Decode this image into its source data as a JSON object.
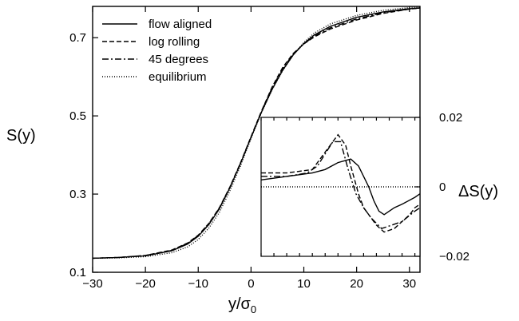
{
  "chart_data": [
    {
      "type": "line",
      "xlabel": "y/σ",
      "xlabel_sub": "0",
      "ylabel": "S(y)",
      "xlim": [
        -30,
        32
      ],
      "ylim": [
        0.1,
        0.78
      ],
      "xticks": [
        -30,
        -20,
        -10,
        0,
        10,
        20,
        30
      ],
      "xtick_labels": [
        "−30",
        "−20",
        "−10",
        "0",
        "10",
        "20",
        "30"
      ],
      "yticks": [
        0.1,
        0.3,
        0.5,
        0.7
      ],
      "ytick_labels": [
        "0.1",
        "0.3",
        "0.5",
        "0.7"
      ],
      "legend_position": "top-left",
      "series": [
        {
          "name": "flow aligned",
          "style": "solid",
          "x": [
            -30,
            -25,
            -20,
            -15,
            -12,
            -10,
            -8,
            -6,
            -4,
            -2,
            0,
            2,
            4,
            6,
            8,
            10,
            12,
            15,
            20,
            25,
            30,
            32
          ],
          "y": [
            0.136,
            0.138,
            0.142,
            0.155,
            0.172,
            0.192,
            0.222,
            0.262,
            0.316,
            0.378,
            0.445,
            0.51,
            0.568,
            0.617,
            0.656,
            0.685,
            0.707,
            0.729,
            0.752,
            0.766,
            0.774,
            0.776
          ]
        },
        {
          "name": "log rolling",
          "style": "dashed",
          "x": [
            -30,
            -25,
            -20,
            -15,
            -12,
            -10,
            -8,
            -6,
            -4,
            -2,
            0,
            2,
            4,
            6,
            8,
            10,
            12,
            15,
            20,
            25,
            30,
            32
          ],
          "y": [
            0.136,
            0.138,
            0.143,
            0.157,
            0.175,
            0.195,
            0.225,
            0.265,
            0.318,
            0.38,
            0.447,
            0.513,
            0.574,
            0.624,
            0.66,
            0.684,
            0.702,
            0.722,
            0.745,
            0.762,
            0.773,
            0.776
          ]
        },
        {
          "name": "45 degrees",
          "style": "dashdot",
          "x": [
            -30,
            -25,
            -20,
            -15,
            -12,
            -10,
            -8,
            -6,
            -4,
            -2,
            0,
            2,
            4,
            6,
            8,
            10,
            12,
            15,
            20,
            25,
            30,
            32
          ],
          "y": [
            0.136,
            0.138,
            0.143,
            0.156,
            0.174,
            0.194,
            0.224,
            0.264,
            0.317,
            0.379,
            0.446,
            0.512,
            0.572,
            0.621,
            0.658,
            0.684,
            0.704,
            0.725,
            0.748,
            0.764,
            0.773,
            0.776
          ]
        },
        {
          "name": "equilibrium",
          "style": "dotted",
          "x": [
            -30,
            -25,
            -20,
            -15,
            -12,
            -10,
            -8,
            -6,
            -4,
            -2,
            0,
            2,
            4,
            6,
            8,
            10,
            12,
            15,
            20,
            25,
            30,
            32
          ],
          "y": [
            0.136,
            0.137,
            0.14,
            0.15,
            0.165,
            0.184,
            0.213,
            0.253,
            0.308,
            0.372,
            0.442,
            0.509,
            0.567,
            0.616,
            0.656,
            0.688,
            0.712,
            0.735,
            0.757,
            0.77,
            0.777,
            0.778
          ]
        }
      ]
    },
    {
      "type": "line",
      "ylabel": "ΔS(y)",
      "xlim": [
        -30,
        32
      ],
      "ylim": [
        -0.02,
        0.02
      ],
      "yticks": [
        -0.02,
        0,
        0.02
      ],
      "ytick_labels": [
        "−0.02",
        "0",
        "0.02"
      ],
      "series": [
        {
          "name": "flow aligned",
          "style": "solid",
          "x": [
            -30,
            -20,
            -10,
            -5,
            0,
            5,
            8,
            12,
            14,
            16,
            18,
            20,
            22,
            25,
            30,
            32
          ],
          "y": [
            0.002,
            0.003,
            0.004,
            0.005,
            0.007,
            0.008,
            0.006,
            0.0,
            -0.004,
            -0.007,
            -0.008,
            -0.007,
            -0.006,
            -0.005,
            -0.003,
            -0.002
          ]
        },
        {
          "name": "log rolling",
          "style": "dashed",
          "x": [
            -30,
            -20,
            -10,
            -5,
            0,
            3,
            5,
            8,
            10,
            12,
            15,
            18,
            22,
            25,
            28,
            30,
            32
          ],
          "y": [
            0.004,
            0.004,
            0.005,
            0.01,
            0.015,
            0.012,
            0.006,
            -0.002,
            -0.006,
            -0.008,
            -0.011,
            -0.013,
            -0.012,
            -0.01,
            -0.008,
            -0.006,
            -0.005
          ]
        },
        {
          "name": "45 degrees",
          "style": "dashdot",
          "x": [
            -30,
            -20,
            -12,
            -8,
            -2,
            1,
            4,
            7,
            10,
            13,
            17,
            21,
            25,
            30,
            32
          ],
          "y": [
            0.003,
            0.003,
            0.004,
            0.006,
            0.013,
            0.013,
            0.005,
            -0.002,
            -0.006,
            -0.009,
            -0.012,
            -0.011,
            -0.01,
            -0.007,
            -0.006
          ]
        },
        {
          "name": "equilibrium",
          "style": "dotted",
          "x": [
            -30,
            32
          ],
          "y": [
            0.0,
            0.0
          ]
        }
      ]
    }
  ]
}
